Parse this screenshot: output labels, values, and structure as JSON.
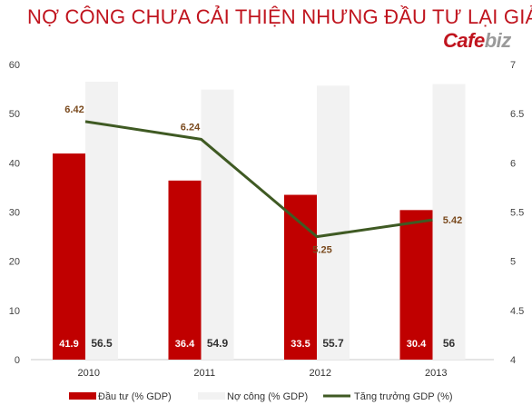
{
  "header": {
    "title": "NỢ CÔNG CHƯA CẢI THIỆN NHƯNG ĐẦU TƯ LẠI GIẢM",
    "logo_main": "Cafe",
    "logo_accent": "biz"
  },
  "chart_data": {
    "type": "bar",
    "title": "NỢ CÔNG CHƯA CẢI THIỆN NHƯNG ĐẦU TƯ LẠI GIẢM",
    "categories": [
      "2010",
      "2011",
      "2012",
      "2013"
    ],
    "series": [
      {
        "name": "Đầu tư (% GDP)",
        "type": "bar",
        "axis": "left",
        "color": "#c00000",
        "values": [
          41.9,
          36.4,
          33.5,
          30.4
        ]
      },
      {
        "name": "Nợ công (% GDP)",
        "type": "bar",
        "axis": "left",
        "color": "#f2f2f2",
        "values": [
          56.5,
          54.9,
          55.7,
          56
        ]
      },
      {
        "name": "Tăng trưởng GDP (%)",
        "type": "line",
        "axis": "right",
        "color": "#3f5a23",
        "values": [
          6.42,
          6.24,
          5.25,
          5.42
        ]
      }
    ],
    "y_left": {
      "min": 0,
      "max": 60,
      "ticks": [
        "0",
        "10",
        "20",
        "30",
        "40",
        "50",
        "60"
      ]
    },
    "y_right": {
      "min": 4,
      "max": 7,
      "ticks": [
        "4",
        "4.5",
        "5",
        "5.5",
        "6",
        "6.5",
        "7"
      ]
    },
    "data_labels": {
      "dau_tu": [
        "41.9",
        "36.4",
        "33.5",
        "30.4"
      ],
      "no_cong": [
        "56.5",
        "54.9",
        "55.7",
        "56"
      ],
      "tang_truong": [
        "6.42",
        "6.24",
        "5.25",
        "5.42"
      ]
    },
    "grid": false,
    "legend_position": "bottom"
  }
}
